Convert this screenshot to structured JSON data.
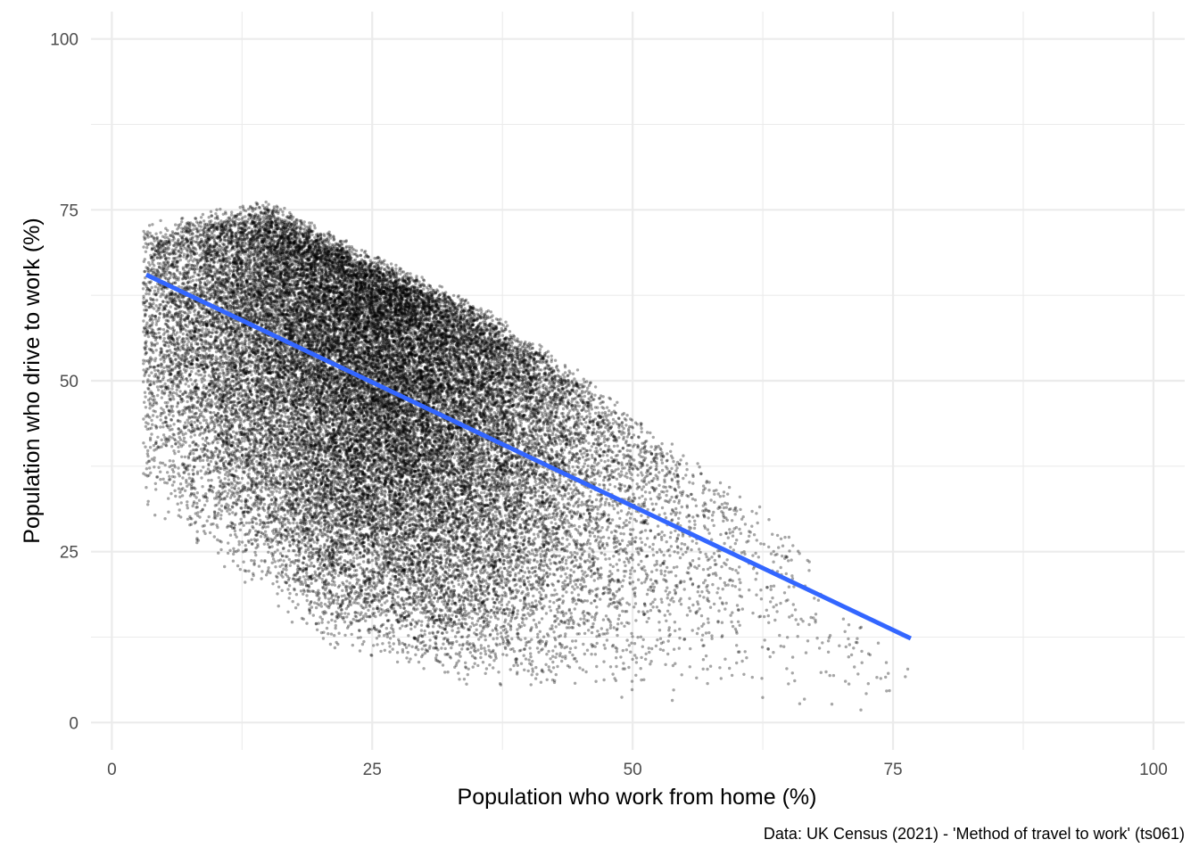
{
  "chart_data": {
    "type": "scatter",
    "title": "",
    "xlabel": "Population who work from home (%)",
    "ylabel": "Population who drive to work (%)",
    "caption": "Data: UK Census (2021) - 'Method of travel to work' (ts061)",
    "xlim": [
      -2,
      103
    ],
    "ylim": [
      -4,
      104
    ],
    "x_ticks": [
      0,
      25,
      50,
      75,
      100
    ],
    "y_ticks": [
      0,
      25,
      50,
      75,
      100
    ],
    "x_tick_labels": [
      "0",
      "25",
      "50",
      "75",
      "100"
    ],
    "y_tick_labels": [
      "0",
      "25",
      "50",
      "75",
      "100"
    ],
    "grid": true,
    "point_color": "#000000",
    "point_opacity": 0.35,
    "point_count_approx": 35000,
    "point_cloud_envelope": {
      "x_range": [
        3,
        77
      ],
      "y_max_at_x": [
        [
          5,
          72
        ],
        [
          15,
          75
        ],
        [
          25,
          67
        ],
        [
          35,
          60
        ],
        [
          45,
          50
        ],
        [
          55,
          38
        ],
        [
          65,
          27
        ],
        [
          75,
          8
        ]
      ],
      "y_min_at_x": [
        [
          5,
          30
        ],
        [
          10,
          24
        ],
        [
          20,
          12
        ],
        [
          30,
          7
        ],
        [
          40,
          5
        ],
        [
          55,
          3
        ],
        [
          70,
          1
        ],
        [
          77,
          2
        ]
      ],
      "densest_region": {
        "x": [
          12,
          40
        ],
        "y": [
          45,
          68
        ]
      }
    },
    "trend_line": {
      "color": "#3366FF",
      "x": [
        3.3,
        76.7
      ],
      "y": [
        65.5,
        12.3
      ]
    }
  }
}
